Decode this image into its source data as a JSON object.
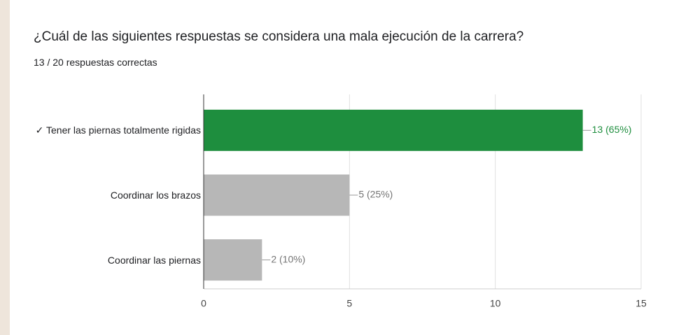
{
  "chart_data": {
    "type": "hbar",
    "title": "¿Cuál de las siguientes respuestas se considera una mala ejecución de la carrera?",
    "subtitle": "13 / 20 respuestas correctas",
    "categories": [
      "✓ Tener las piernas totalmente rigidas",
      "Coordinar los brazos",
      "Coordinar las piernas"
    ],
    "values": [
      13,
      5,
      2
    ],
    "value_labels": [
      "13 (65%)",
      "5 (25%)",
      "2 (10%)"
    ],
    "colors": [
      "#1e8e3e",
      "#b7b7b7",
      "#b7b7b7"
    ],
    "label_colors": [
      "#1e8e3e",
      "#757575",
      "#757575"
    ],
    "xlim": [
      0,
      15
    ],
    "xticks": [
      0,
      5,
      10,
      15
    ],
    "grid": true
  }
}
